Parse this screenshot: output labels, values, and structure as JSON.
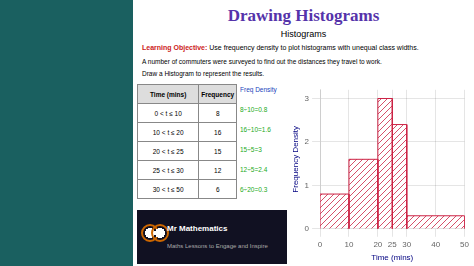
{
  "chart_data": {
    "type": "histogram",
    "title": "Drawing Histograms",
    "subtitle": "Histograms",
    "annotations": [
      "Learning Objective:",
      "Use frequency density to plot histograms with unequal class widths.",
      "A number of commuters were surveyed to find out the distances they travel to work.",
      "Draw a Histogram to represent the results.",
      "Time (mins)",
      "Frequency",
      "0 < t ≤ 10",
      "8",
      "10 < t ≤ 20",
      "16",
      "20 < t ≤ 25",
      "15",
      "25 < t ≤ 30",
      "12",
      "30 < t ≤ 50",
      "6",
      "Freq Density",
      "8÷10=0.8",
      "16÷10=1.6",
      "15÷5=3",
      "12÷5=2.4",
      "6÷20=0.3",
      "Mr Mathematics",
      "Maths Lessons to Engage and Inspire"
    ],
    "bins": [
      0,
      10,
      20,
      25,
      30,
      50
    ],
    "values": [
      0.8,
      1.6,
      3.0,
      2.4,
      0.3
    ],
    "color": "#cc2244",
    "xlabel": "Time (mins)",
    "ylabel": "Frequency Density",
    "xlim": [
      0,
      50
    ],
    "ylim": [
      0,
      3.2
    ],
    "xticks": [
      0,
      10,
      20,
      25,
      30,
      40,
      50
    ],
    "yticks": [
      0,
      1,
      2,
      3
    ],
    "grid": true
  }
}
